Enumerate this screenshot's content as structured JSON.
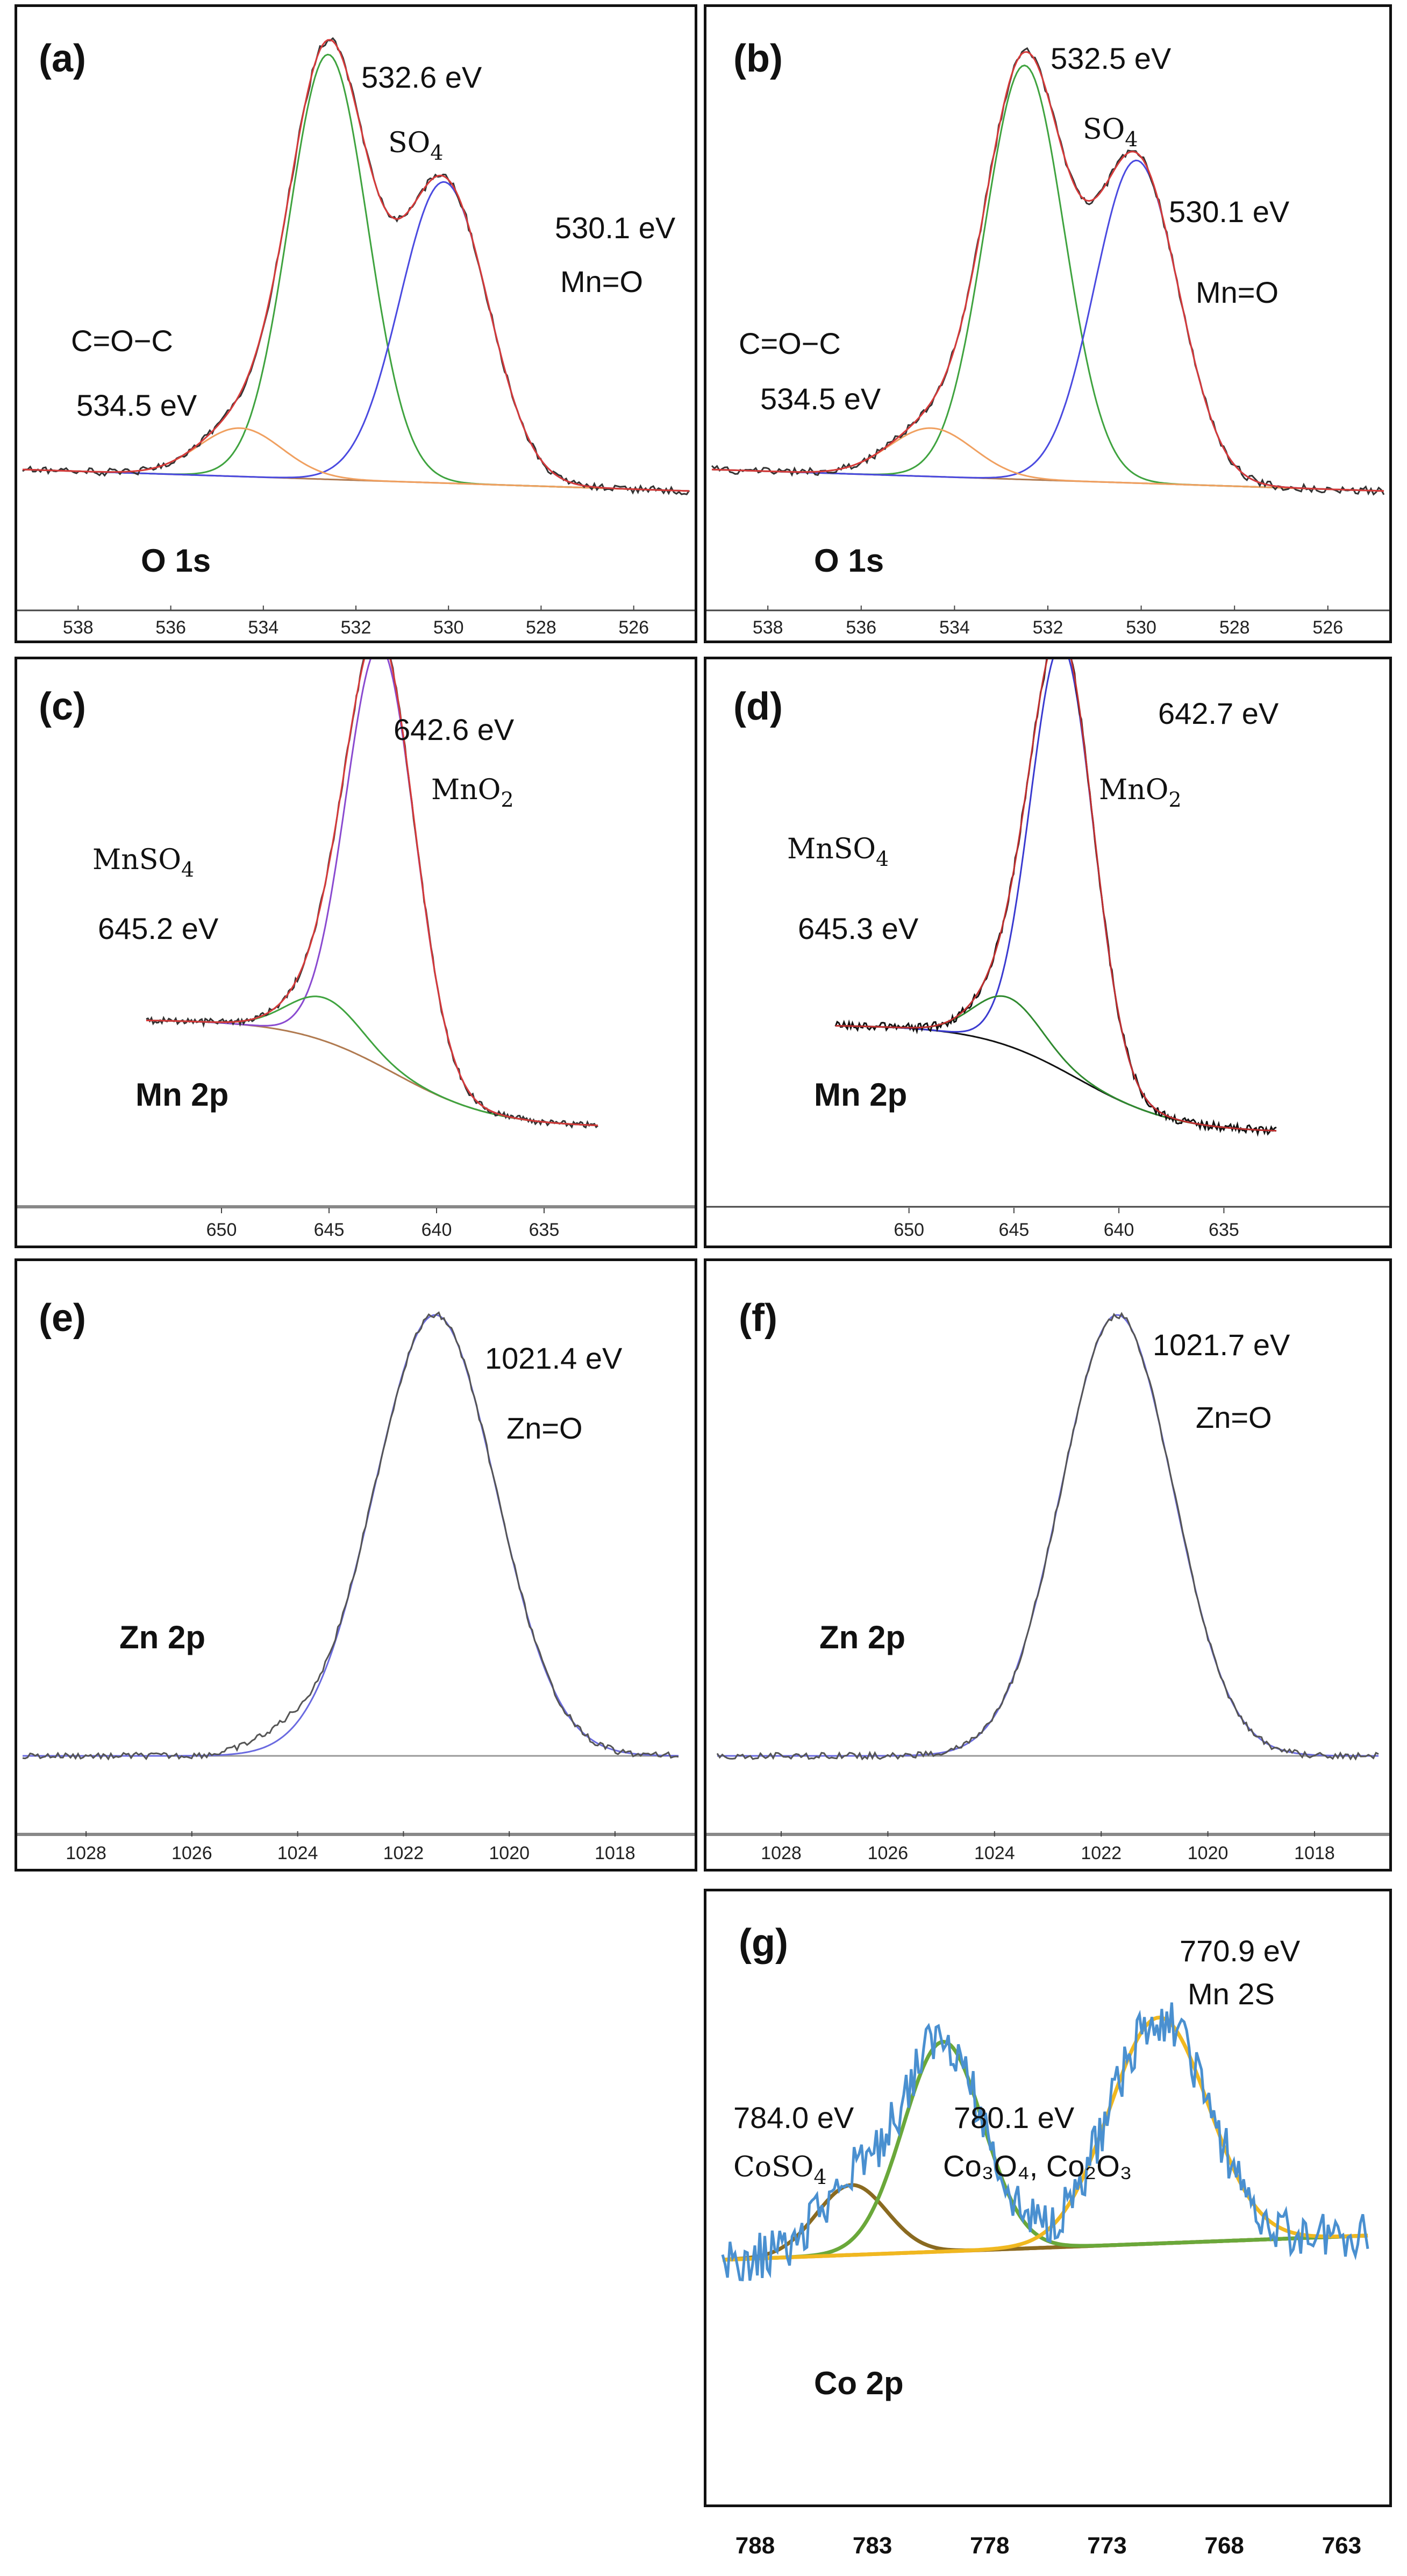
{
  "figure": {
    "panels": [
      {
        "id": "a",
        "label": "(a)",
        "element_label": "O 1s",
        "annotations": [
          {
            "text": "532.6 eV"
          },
          {
            "text": "SO",
            "sub": "4"
          },
          {
            "text": "530.1 eV"
          },
          {
            "text": "Mn=O"
          },
          {
            "text": "C=O−C"
          },
          {
            "text": "534.5 eV"
          }
        ]
      },
      {
        "id": "b",
        "label": "(b)",
        "element_label": "O 1s",
        "annotations": [
          {
            "text": "532.5 eV"
          },
          {
            "text": "SO",
            "sub": "4"
          },
          {
            "text": "530.1 eV"
          },
          {
            "text": "Mn=O"
          },
          {
            "text": "C=O−C"
          },
          {
            "text": "534.5 eV"
          }
        ]
      },
      {
        "id": "c",
        "label": "(c)",
        "element_label": "Mn 2p",
        "annotations": [
          {
            "text": "642.6 eV"
          },
          {
            "text": "MnO",
            "sub": "2"
          },
          {
            "text": "MnSO",
            "sub": "4"
          },
          {
            "text": "645.2 eV"
          }
        ]
      },
      {
        "id": "d",
        "label": "(d)",
        "element_label": "Mn 2p",
        "annotations": [
          {
            "text": "642.7 eV"
          },
          {
            "text": "MnO",
            "sub": "2"
          },
          {
            "text": "MnSO",
            "sub": "4"
          },
          {
            "text": "645.3 eV"
          }
        ]
      },
      {
        "id": "e",
        "label": "(e)",
        "element_label": "Zn 2p",
        "annotations": [
          {
            "text": "1021.4 eV"
          },
          {
            "text": "Zn=O"
          }
        ]
      },
      {
        "id": "f",
        "label": "(f)",
        "element_label": "Zn 2p",
        "annotations": [
          {
            "text": "1021.7 eV"
          },
          {
            "text": "Zn=O"
          }
        ]
      },
      {
        "id": "g",
        "label": "(g)",
        "element_label": "Co 2p",
        "annotations": [
          {
            "text": "770.9 eV"
          },
          {
            "text": "Mn 2S"
          },
          {
            "text": "784.0 eV"
          },
          {
            "text": "CoSO",
            "sub": "4"
          },
          {
            "text": "780.1 eV"
          },
          {
            "text": "Co₃O₄, Co₂O₃"
          }
        ]
      }
    ]
  },
  "chart_data": [
    {
      "type": "line",
      "panel": "a",
      "xlabel": "",
      "ylabel": "",
      "x_ticks": [
        538,
        536,
        534,
        532,
        530,
        528,
        526
      ],
      "xlim": [
        539.2,
        524.8
      ],
      "x_reversed": true,
      "peaks": [
        {
          "center": 532.6,
          "color": "#3fa33f"
        },
        {
          "center": 530.1,
          "color": "#4a4ae0"
        },
        {
          "center": 534.5,
          "color": "#f0a060"
        }
      ],
      "envelope_color": "#d63a3a",
      "data_color": "#333333",
      "background_color": "#b07a50"
    },
    {
      "type": "line",
      "panel": "b",
      "xlabel": "",
      "ylabel": "",
      "x_ticks": [
        538,
        536,
        534,
        532,
        530,
        528,
        526
      ],
      "xlim": [
        539.2,
        524.8
      ],
      "x_reversed": true,
      "peaks": [
        {
          "center": 532.5,
          "color": "#3fa33f"
        },
        {
          "center": 530.1,
          "color": "#4a4ae0"
        },
        {
          "center": 534.5,
          "color": "#f0a060"
        }
      ],
      "envelope_color": "#d63a3a",
      "data_color": "#333333",
      "background_color": "#b07a50"
    },
    {
      "type": "line",
      "panel": "c",
      "xlabel": "",
      "ylabel": "",
      "x_ticks": [
        650,
        645,
        640,
        635
      ],
      "xlim": [
        653.5,
        632.5
      ],
      "x_reversed": true,
      "peaks": [
        {
          "center": 642.6,
          "color": "#8a4ad0"
        },
        {
          "center": 645.2,
          "color": "#3fa33f"
        }
      ],
      "envelope_color": "#d63a3a",
      "data_color": "#333333",
      "background_color": "#b07a50"
    },
    {
      "type": "line",
      "panel": "d",
      "xlabel": "",
      "ylabel": "",
      "x_ticks": [
        650,
        645,
        640,
        635
      ],
      "xlim": [
        653.5,
        632.5
      ],
      "x_reversed": true,
      "peaks": [
        {
          "center": 642.7,
          "color": "#3a3ad0"
        },
        {
          "center": 645.3,
          "color": "#2f8a2f"
        }
      ],
      "envelope_color": "#c03030",
      "data_color": "#111111",
      "background_color": "#111111"
    },
    {
      "type": "line",
      "panel": "e",
      "xlabel": "",
      "ylabel": "",
      "x_ticks": [
        1028,
        1026,
        1024,
        1022,
        1020,
        1018
      ],
      "xlim": [
        1029.2,
        1016.8
      ],
      "x_reversed": true,
      "peaks": [
        {
          "center": 1021.4,
          "color": "#6a6ae0"
        }
      ],
      "envelope_color": "#6a6ae0",
      "data_color": "#555555",
      "background_color": "#999999"
    },
    {
      "type": "line",
      "panel": "f",
      "xlabel": "",
      "ylabel": "",
      "x_ticks": [
        1028,
        1026,
        1024,
        1022,
        1020,
        1018
      ],
      "xlim": [
        1029.2,
        1016.8
      ],
      "x_reversed": true,
      "peaks": [
        {
          "center": 1021.7,
          "color": "#6a6ae0"
        }
      ],
      "envelope_color": "#6a6ae0",
      "data_color": "#555555",
      "background_color": "#999999"
    },
    {
      "type": "line",
      "panel": "g",
      "xlabel": "",
      "ylabel": "",
      "x_ticks": [
        788,
        783,
        778,
        773,
        768,
        763
      ],
      "xlim": [
        789.5,
        762
      ],
      "x_reversed": true,
      "peaks": [
        {
          "center": 784.0,
          "color": "#8a6a20"
        },
        {
          "center": 780.1,
          "color": "#6aa83a"
        },
        {
          "center": 770.9,
          "color": "#f0b820"
        }
      ],
      "data_color": "#4a90d0",
      "background_color": "#e07a20"
    }
  ]
}
